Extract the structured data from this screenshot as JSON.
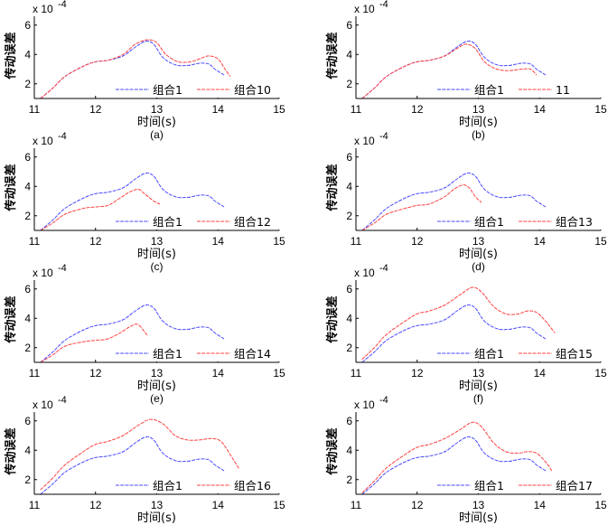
{
  "figure": {
    "xlabel": "时间(s)",
    "ylabel": "传动误差",
    "yscale_label": "x 10",
    "yscale_exponent": "-4",
    "colors": {
      "base": "#4a4aff",
      "compare": "#ff4040"
    }
  },
  "chart_data": [
    {
      "type": "line",
      "caption": "(a)",
      "xlim": [
        11,
        15
      ],
      "ylim": [
        1,
        6.6
      ],
      "xticks": [
        11,
        12,
        13,
        14,
        15
      ],
      "yticks": [
        2,
        4,
        6
      ],
      "legend": [
        "组合1",
        "组合10"
      ],
      "series": [
        {
          "name": "组合1",
          "x": [
            11.1,
            11.3,
            11.5,
            11.8,
            12.0,
            12.2,
            12.45,
            12.65,
            12.82,
            12.95,
            13.1,
            13.3,
            13.5,
            13.7,
            13.85,
            13.95,
            14.1
          ],
          "y": [
            1.0,
            1.7,
            2.5,
            3.2,
            3.5,
            3.6,
            3.9,
            4.5,
            4.9,
            4.7,
            3.8,
            3.3,
            3.25,
            3.4,
            3.35,
            3.0,
            2.6
          ]
        },
        {
          "name": "组合10",
          "x": [
            11.1,
            11.3,
            11.5,
            11.8,
            12.0,
            12.2,
            12.45,
            12.65,
            12.85,
            13.0,
            13.15,
            13.35,
            13.55,
            13.7,
            13.85,
            14.0,
            14.1,
            14.2
          ],
          "y": [
            1.0,
            1.7,
            2.5,
            3.2,
            3.5,
            3.6,
            4.0,
            4.7,
            5.0,
            4.8,
            4.0,
            3.5,
            3.5,
            3.7,
            3.9,
            3.7,
            3.1,
            2.5
          ]
        }
      ]
    },
    {
      "type": "line",
      "caption": "(b)",
      "xlim": [
        11,
        15
      ],
      "ylim": [
        1,
        6.6
      ],
      "xticks": [
        11,
        12,
        13,
        14,
        15
      ],
      "yticks": [
        2,
        4,
        6
      ],
      "legend": [
        "组合1",
        "11"
      ],
      "series": [
        {
          "name": "组合1",
          "x": [
            11.1,
            11.3,
            11.5,
            11.8,
            12.0,
            12.2,
            12.45,
            12.65,
            12.82,
            12.95,
            13.1,
            13.3,
            13.5,
            13.7,
            13.85,
            13.95,
            14.1
          ],
          "y": [
            1.0,
            1.7,
            2.5,
            3.2,
            3.5,
            3.6,
            3.9,
            4.5,
            4.9,
            4.7,
            3.8,
            3.3,
            3.25,
            3.4,
            3.35,
            3.0,
            2.6
          ]
        },
        {
          "name": "11",
          "x": [
            11.1,
            11.3,
            11.5,
            11.8,
            12.0,
            12.2,
            12.45,
            12.65,
            12.8,
            12.95,
            13.1,
            13.3,
            13.5,
            13.7,
            13.85,
            13.95
          ],
          "y": [
            1.0,
            1.7,
            2.5,
            3.2,
            3.5,
            3.6,
            3.9,
            4.4,
            4.7,
            4.4,
            3.5,
            3.0,
            2.9,
            3.0,
            3.0,
            2.6
          ]
        }
      ]
    },
    {
      "type": "line",
      "caption": "(c)",
      "xlim": [
        11,
        15
      ],
      "ylim": [
        1,
        6.6
      ],
      "xticks": [
        11,
        12,
        13,
        14,
        15
      ],
      "yticks": [
        2,
        4,
        6
      ],
      "legend": [
        "组合1",
        "组合12"
      ],
      "series": [
        {
          "name": "组合1",
          "x": [
            11.1,
            11.3,
            11.5,
            11.8,
            12.0,
            12.2,
            12.45,
            12.65,
            12.82,
            12.95,
            13.1,
            13.3,
            13.5,
            13.7,
            13.85,
            13.95,
            14.1
          ],
          "y": [
            1.0,
            1.7,
            2.5,
            3.2,
            3.5,
            3.6,
            3.9,
            4.5,
            4.9,
            4.7,
            3.8,
            3.3,
            3.25,
            3.4,
            3.35,
            3.0,
            2.6
          ]
        },
        {
          "name": "组合12",
          "x": [
            11.1,
            11.3,
            11.5,
            11.8,
            12.0,
            12.2,
            12.4,
            12.55,
            12.7,
            12.8,
            12.95,
            13.05
          ],
          "y": [
            1.0,
            1.5,
            2.1,
            2.5,
            2.6,
            2.7,
            3.2,
            3.6,
            3.8,
            3.5,
            3.0,
            2.8
          ]
        }
      ]
    },
    {
      "type": "line",
      "caption": "(d)",
      "xlim": [
        11,
        15
      ],
      "ylim": [
        1,
        6.6
      ],
      "xticks": [
        11,
        12,
        13,
        14,
        15
      ],
      "yticks": [
        2,
        4,
        6
      ],
      "legend": [
        "组合1",
        "组合13"
      ],
      "series": [
        {
          "name": "组合1",
          "x": [
            11.1,
            11.3,
            11.5,
            11.8,
            12.0,
            12.2,
            12.45,
            12.65,
            12.82,
            12.95,
            13.1,
            13.3,
            13.5,
            13.7,
            13.85,
            13.95,
            14.1
          ],
          "y": [
            1.0,
            1.7,
            2.5,
            3.2,
            3.5,
            3.6,
            3.9,
            4.5,
            4.9,
            4.7,
            3.8,
            3.3,
            3.25,
            3.4,
            3.35,
            3.0,
            2.6
          ]
        },
        {
          "name": "组合13",
          "x": [
            11.1,
            11.3,
            11.5,
            11.8,
            12.0,
            12.2,
            12.45,
            12.6,
            12.75,
            12.85,
            12.95,
            13.05
          ],
          "y": [
            1.0,
            1.5,
            2.1,
            2.5,
            2.7,
            2.8,
            3.3,
            3.8,
            4.1,
            3.9,
            3.3,
            2.9
          ]
        }
      ]
    },
    {
      "type": "line",
      "caption": "(e)",
      "xlim": [
        11,
        15
      ],
      "ylim": [
        1,
        6.6
      ],
      "xticks": [
        11,
        12,
        13,
        14,
        15
      ],
      "yticks": [
        2,
        4,
        6
      ],
      "legend": [
        "组合1",
        "组合14"
      ],
      "series": [
        {
          "name": "组合1",
          "x": [
            11.1,
            11.3,
            11.5,
            11.8,
            12.0,
            12.2,
            12.45,
            12.65,
            12.82,
            12.95,
            13.1,
            13.3,
            13.5,
            13.7,
            13.85,
            13.95,
            14.1
          ],
          "y": [
            1.0,
            1.7,
            2.5,
            3.2,
            3.5,
            3.6,
            3.9,
            4.5,
            4.9,
            4.7,
            3.8,
            3.3,
            3.25,
            3.4,
            3.35,
            3.0,
            2.6
          ]
        },
        {
          "name": "组合14",
          "x": [
            11.1,
            11.3,
            11.5,
            11.8,
            12.0,
            12.2,
            12.4,
            12.55,
            12.68,
            12.78,
            12.85
          ],
          "y": [
            1.0,
            1.5,
            2.1,
            2.4,
            2.5,
            2.6,
            3.0,
            3.4,
            3.6,
            3.2,
            2.8
          ]
        }
      ]
    },
    {
      "type": "line",
      "caption": "(f)",
      "xlim": [
        11,
        15
      ],
      "ylim": [
        1,
        6.6
      ],
      "xticks": [
        11,
        12,
        13,
        14,
        15
      ],
      "yticks": [
        2,
        4,
        6
      ],
      "legend": [
        "组合1",
        "组合15"
      ],
      "series": [
        {
          "name": "组合1",
          "x": [
            11.1,
            11.3,
            11.5,
            11.8,
            12.0,
            12.2,
            12.45,
            12.65,
            12.82,
            12.95,
            13.1,
            13.3,
            13.5,
            13.7,
            13.85,
            13.95,
            14.1
          ],
          "y": [
            1.0,
            1.7,
            2.5,
            3.2,
            3.5,
            3.6,
            3.9,
            4.5,
            4.9,
            4.7,
            3.8,
            3.3,
            3.25,
            3.4,
            3.35,
            3.0,
            2.6
          ]
        },
        {
          "name": "组合15",
          "x": [
            11.1,
            11.3,
            11.5,
            11.8,
            12.0,
            12.2,
            12.45,
            12.7,
            12.9,
            13.05,
            13.25,
            13.45,
            13.65,
            13.8,
            13.95,
            14.1,
            14.25
          ],
          "y": [
            1.2,
            2.0,
            2.9,
            3.8,
            4.3,
            4.5,
            4.9,
            5.6,
            6.1,
            5.8,
            4.8,
            4.3,
            4.3,
            4.5,
            4.4,
            3.8,
            3.0
          ]
        }
      ]
    },
    {
      "type": "line",
      "caption": "(g)",
      "xlim": [
        11,
        15
      ],
      "ylim": [
        1,
        6.6
      ],
      "xticks": [
        11,
        12,
        13,
        14,
        15
      ],
      "yticks": [
        2,
        4,
        6
      ],
      "legend": [
        "组合1",
        "组合16"
      ],
      "series": [
        {
          "name": "组合1",
          "x": [
            11.1,
            11.3,
            11.5,
            11.8,
            12.0,
            12.2,
            12.45,
            12.65,
            12.82,
            12.95,
            13.1,
            13.3,
            13.5,
            13.7,
            13.85,
            13.95,
            14.1
          ],
          "y": [
            1.0,
            1.7,
            2.5,
            3.2,
            3.5,
            3.6,
            3.9,
            4.5,
            4.9,
            4.7,
            3.8,
            3.3,
            3.25,
            3.4,
            3.35,
            3.0,
            2.6
          ]
        },
        {
          "name": "组合16",
          "x": [
            11.1,
            11.3,
            11.5,
            11.8,
            12.0,
            12.2,
            12.45,
            12.7,
            12.9,
            13.1,
            13.3,
            13.5,
            13.7,
            13.9,
            14.05,
            14.2,
            14.35
          ],
          "y": [
            1.3,
            2.1,
            3.0,
            3.9,
            4.4,
            4.6,
            5.0,
            5.7,
            6.1,
            5.8,
            5.0,
            4.7,
            4.7,
            4.8,
            4.6,
            3.7,
            2.7
          ]
        }
      ]
    },
    {
      "type": "line",
      "caption": "(h)",
      "xlim": [
        11,
        15
      ],
      "ylim": [
        1,
        6.6
      ],
      "xticks": [
        11,
        12,
        13,
        14,
        15
      ],
      "yticks": [
        2,
        4,
        6
      ],
      "legend": [
        "组合1",
        "组合17"
      ],
      "series": [
        {
          "name": "组合1",
          "x": [
            11.1,
            11.3,
            11.5,
            11.8,
            12.0,
            12.2,
            12.45,
            12.65,
            12.82,
            12.95,
            13.1,
            13.3,
            13.5,
            13.7,
            13.85,
            13.95,
            14.1
          ],
          "y": [
            1.0,
            1.7,
            2.5,
            3.2,
            3.5,
            3.6,
            3.9,
            4.5,
            4.9,
            4.7,
            3.8,
            3.3,
            3.25,
            3.4,
            3.35,
            3.0,
            2.6
          ]
        },
        {
          "name": "组合17",
          "x": [
            11.1,
            11.3,
            11.5,
            11.8,
            12.0,
            12.2,
            12.45,
            12.7,
            12.9,
            13.05,
            13.25,
            13.45,
            13.65,
            13.8,
            13.95,
            14.1,
            14.2
          ],
          "y": [
            1.1,
            1.9,
            2.8,
            3.7,
            4.2,
            4.4,
            4.8,
            5.4,
            5.9,
            5.6,
            4.5,
            3.9,
            3.8,
            3.9,
            3.8,
            3.2,
            2.6
          ]
        }
      ]
    }
  ]
}
